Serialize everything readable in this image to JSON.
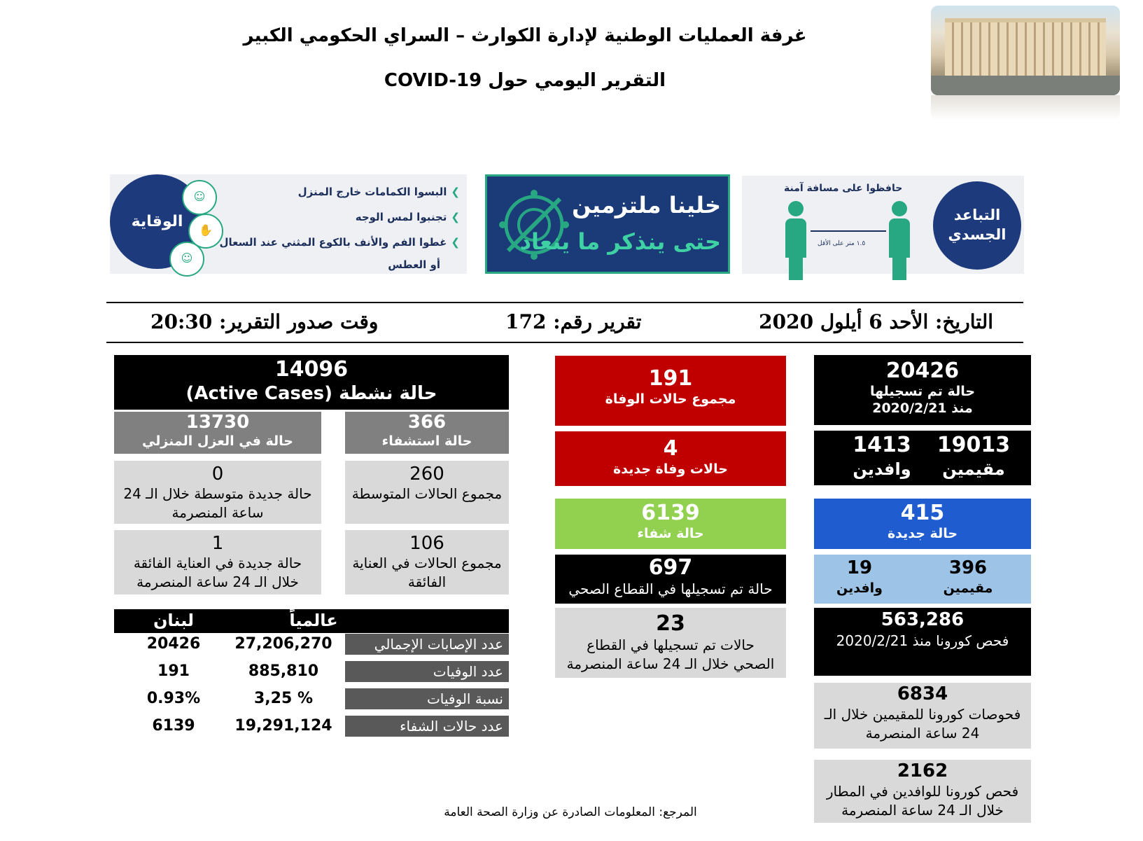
{
  "header": {
    "title_line1": "غرفة العمليات الوطنية لإدارة الكوارث – السراي الحكومي الكبير",
    "title_line2": "التقرير اليومي حول COVID-19"
  },
  "banners": {
    "prevention": {
      "circle": "الوقاية",
      "bullets": [
        "البسوا الكمامات خارج المنزل",
        "تجنبوا لمس الوجه",
        "غطوا الفم والأنف بالكوع المثني عند السعال",
        "أو العطس"
      ]
    },
    "commitment": {
      "line1": "خلينا ملتزمين",
      "line2": "حتى ينذكر ما ينعاد"
    },
    "distancing": {
      "circle": "التباعد الجسدي",
      "caption": "حافظوا على مسافة آمنة",
      "distance": "١.٥ متر على الأقل"
    }
  },
  "report": {
    "date": "التاريخ: الأحد 6 أيلول 2020",
    "number": "تقرير رقم: 172",
    "time": "وقت صدور التقرير: 20:30"
  },
  "right_col": {
    "total": {
      "value": "20426",
      "label1": "حالة تم تسجيلها",
      "label2": "منذ 2020/2/21"
    },
    "residents": {
      "value": "19013",
      "label": "مقيمين"
    },
    "arrivals": {
      "value": "1413",
      "label": "وافدين"
    },
    "new_cases": {
      "value": "415",
      "label": "حالة جديدة"
    },
    "new_residents": {
      "value": "396",
      "label": "مقيمين"
    },
    "new_arrivals": {
      "value": "19",
      "label": "وافدين"
    },
    "tests_total": {
      "value": "563,286",
      "label": "فحص كورونا منذ 2020/2/21"
    },
    "tests_residents": {
      "value": "6834",
      "label": "فحوصات كورونا للمقيمين خلال الـ 24 ساعة المنصرمة"
    },
    "tests_airport": {
      "value": "2162",
      "label": "فحص كورونا للوافدين في المطار خلال الـ 24 ساعة المنصرمة"
    }
  },
  "mid_col": {
    "deaths_total": {
      "value": "191",
      "label": "مجموع حالات الوفاة"
    },
    "deaths_new": {
      "value": "4",
      "label": "حالات وفاة جديدة"
    },
    "recovered": {
      "value": "6139",
      "label": "حالة شفاء"
    },
    "health_sector": {
      "value": "697",
      "label": "حالة تم تسجيلها في القطاع الصحي"
    },
    "health_sector_24h": {
      "value": "23",
      "label": "حالات تم تسجيلها في القطاع الصحي خلال الـ 24 ساعة المنصرمة"
    }
  },
  "left_col": {
    "active": {
      "value": "14096",
      "label": "حالة نشطة (Active Cases)"
    },
    "hospital": {
      "value": "366",
      "label": "حالة استشفاء"
    },
    "home_isolation": {
      "value": "13730",
      "label": "حالة في العزل المنزلي"
    },
    "moderate_total": {
      "value": "260",
      "label": "مجموع الحالات المتوسطة"
    },
    "moderate_new": {
      "value": "0",
      "label": "حالة جديدة متوسطة خلال الـ 24 ساعة المنصرمة"
    },
    "icu_total": {
      "value": "106",
      "label": "مجموع الحالات في العناية الفائقة"
    },
    "icu_new": {
      "value": "1",
      "label": "حالة جديدة في العناية الفائقة خلال الـ 24 ساعة المنصرمة"
    }
  },
  "comparison": {
    "col_global": "عالمياً",
    "col_lebanon": "لبنان",
    "rows": [
      {
        "label": "عدد الإصابات الإجمالي",
        "global": "27,206,270",
        "lebanon": "20426"
      },
      {
        "label": "عدد الوفيات",
        "global": "885,810",
        "lebanon": "191"
      },
      {
        "label": "نسبة الوفيات",
        "global": "3,25 %",
        "lebanon": "0.93%"
      },
      {
        "label": "عدد حالات الشفاء",
        "global": "19,291,124",
        "lebanon": "6139"
      }
    ]
  },
  "footer": {
    "source": "المرجع: المعلومات الصادرة عن وزارة الصحة العامة"
  }
}
